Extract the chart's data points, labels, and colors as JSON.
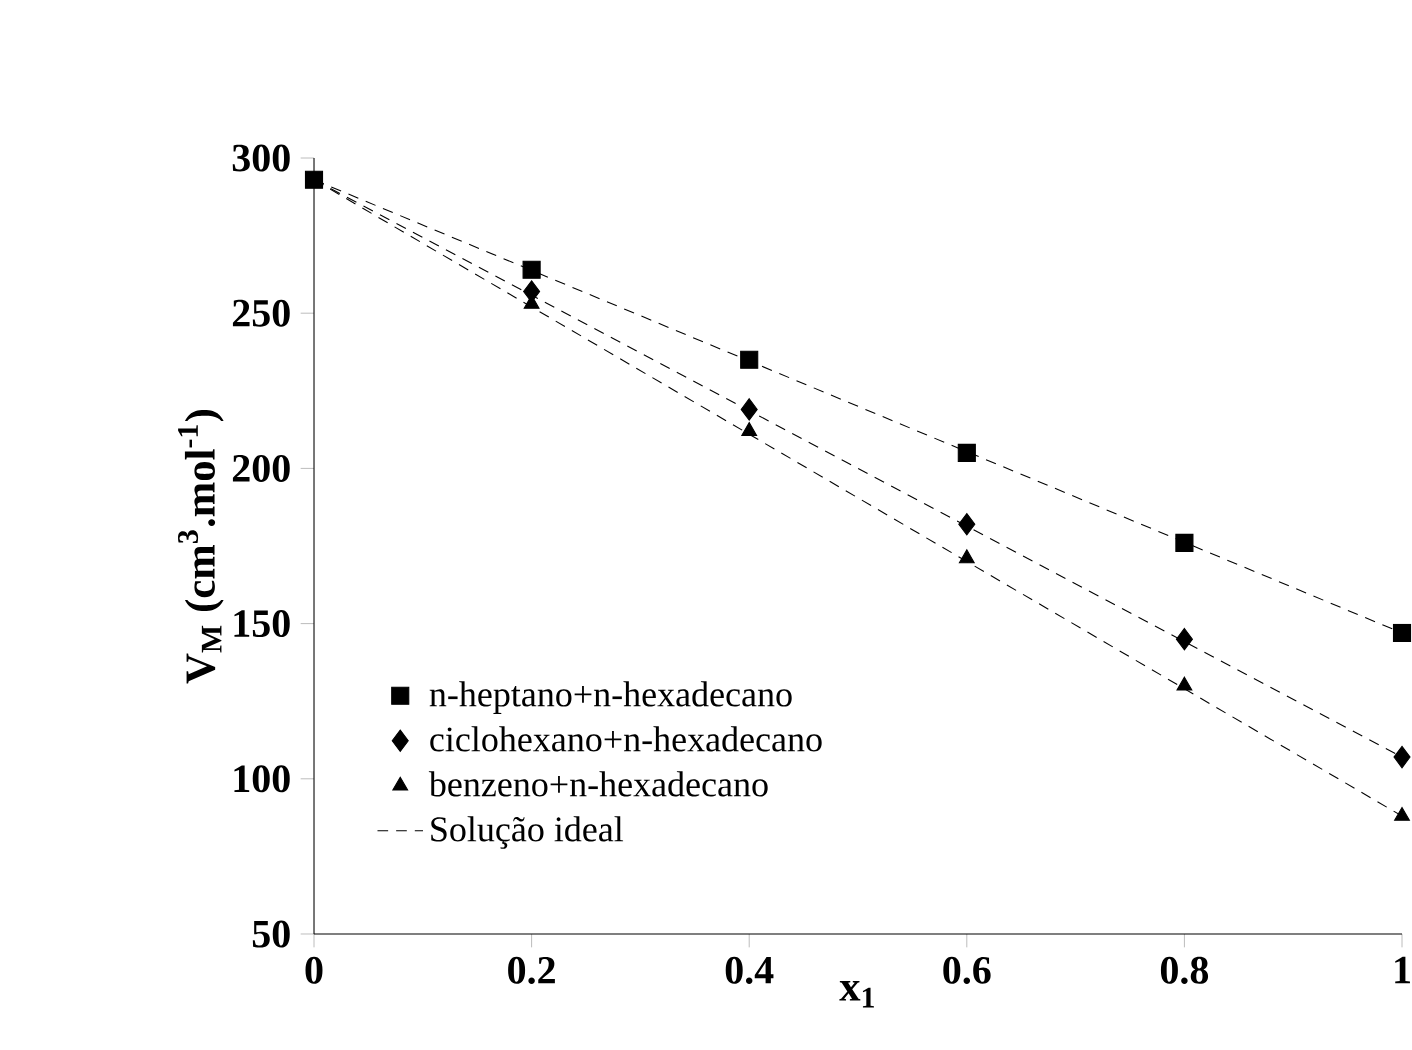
{
  "chart_data": {
    "type": "scatter",
    "xlabel": "x$_{1}$",
    "ylabel": "V$_{M}$ (cm$^{3}$.mol$^{-1}$)",
    "xlim": [
      0,
      1
    ],
    "ylim": [
      50,
      300
    ],
    "xticks": [
      0,
      0.2,
      0.4,
      0.6,
      0.8,
      1
    ],
    "yticks": [
      50,
      100,
      150,
      200,
      250,
      300
    ],
    "grid": false,
    "legend": "bottom left",
    "series": [
      {
        "name": "n-heptano+n-hexadecano",
        "marker": "square",
        "color": "#000000",
        "x": [
          0,
          0.2,
          0.4,
          0.6,
          0.8,
          1
        ],
        "values": [
          293,
          264,
          235,
          205,
          176,
          147
        ]
      },
      {
        "name": "ciclohexano+n-hexadecano",
        "marker": "diamond",
        "color": "#000000",
        "x": [
          0.2,
          0.4,
          0.6,
          0.8,
          1
        ],
        "values": [
          257,
          219,
          182,
          145,
          107
        ]
      },
      {
        "name": "benzeno+n-hexadecano",
        "marker": "triangle",
        "color": "#000000",
        "x": [
          0.2,
          0.4,
          0.6,
          0.8,
          1
        ],
        "values": [
          253,
          212,
          171,
          130,
          88
        ]
      },
      {
        "name": "Solução ideal",
        "type": "line",
        "line_style": "dashed",
        "color": "#000000",
        "x": [
          0,
          1
        ],
        "values": [
          293,
          147
        ]
      },
      {
        "type": "line",
        "line_style": "dashed",
        "color": "#000000",
        "x": [
          0,
          1
        ],
        "values": [
          293,
          107
        ]
      },
      {
        "type": "line",
        "line_style": "dashed",
        "color": "#000000",
        "x": [
          0,
          1
        ],
        "values": [
          293,
          88
        ]
      }
    ]
  }
}
